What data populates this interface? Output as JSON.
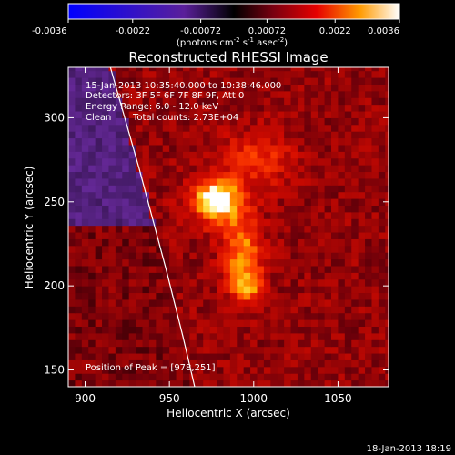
{
  "chart_data": {
    "type": "heatmap",
    "title": "Reconstructed RHESSI Image",
    "xlabel": "Heliocentric X (arcsec)",
    "ylabel": "Heliocentric Y (arcsec)",
    "xlim": [
      890,
      1080
    ],
    "ylim": [
      140,
      330
    ],
    "x_ticks": [
      900,
      950,
      1000,
      1050
    ],
    "y_ticks": [
      150,
      200,
      250,
      300
    ],
    "colorbar": {
      "min": -0.0036,
      "max": 0.0036,
      "ticks": [
        "-0.0036",
        "-0.0022",
        "-0.00072",
        "0.00072",
        "0.0022",
        "0.0036"
      ],
      "units_prefix": "(photons cm",
      "units_exp1": "-2",
      "units_mid": " s",
      "units_exp2": "-1",
      "units_mid2": " asec",
      "units_exp3": "-2",
      "units_suffix": ")"
    },
    "annotations": {
      "time_range": "15-Jan-2013 10:35:40.000 to 10:38:46.000",
      "detectors": "Detectors: 3F 5F 6F 7F 8F 9F, Att 0",
      "energy": "Energy Range: 6.0 - 12.0 keV",
      "method": "Clean",
      "counts": "Total counts: 2.73E+04",
      "peak": "Position of Peak = [978,251]"
    },
    "peak_position": [
      978,
      251
    ],
    "sources": [
      {
        "x": 978,
        "y": 251,
        "sx": 10,
        "sy": 9,
        "amp": 1.0
      },
      {
        "x": 993,
        "y": 222,
        "sx": 8,
        "sy": 14,
        "amp": 0.55
      },
      {
        "x": 996,
        "y": 200,
        "sx": 7,
        "sy": 8,
        "amp": 0.55
      },
      {
        "x": 1002,
        "y": 275,
        "sx": 14,
        "sy": 12,
        "amp": 0.35
      }
    ],
    "limb_curve": [
      [
        915,
        330
      ],
      [
        932,
        270
      ],
      [
        948,
        210
      ],
      [
        958,
        170
      ],
      [
        965,
        140
      ]
    ]
  },
  "footer": {
    "timestamp": "18-Jan-2013 18:19"
  }
}
